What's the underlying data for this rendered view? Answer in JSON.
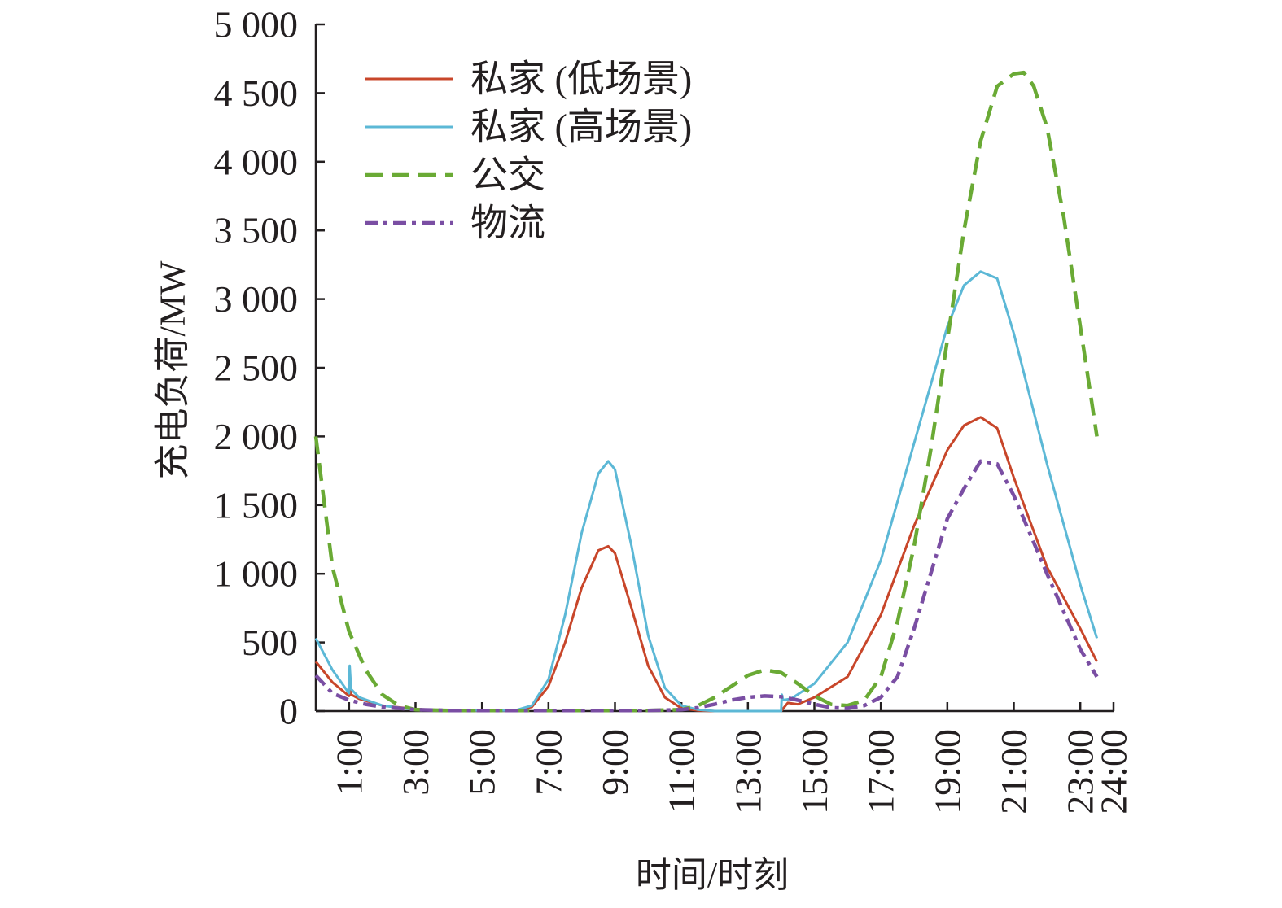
{
  "chart_data": {
    "type": "line",
    "title": "",
    "xlabel": "时间/时刻",
    "ylabel": "充电负荷/MW",
    "xlim": [
      0,
      24
    ],
    "ylim": [
      0,
      5000
    ],
    "yticks": [
      0,
      500,
      1000,
      1500,
      2000,
      2500,
      3000,
      3500,
      4000,
      4500,
      5000
    ],
    "ytick_labels": [
      "0",
      "500",
      "1 000",
      "1 500",
      "2 000",
      "2 500",
      "3 000",
      "3 500",
      "4 000",
      "4 500",
      "5 000"
    ],
    "xticks": [
      1,
      3,
      5,
      7,
      9,
      11,
      13,
      15,
      17,
      19,
      21,
      23,
      24
    ],
    "xtick_labels": [
      "1:00",
      "3:00",
      "5:00",
      "7:00",
      "9:00",
      "11:00",
      "13:00",
      "15:00",
      "17:00",
      "19:00",
      "21:00",
      "23:00",
      "24:00"
    ],
    "grid": false,
    "legend_position": "top-left",
    "series": [
      {
        "name": "私家 (低场景)",
        "color": "#c8462a",
        "style": "solid",
        "x": [
          0,
          0.5,
          1,
          1.02,
          1.06,
          1.3,
          2,
          3,
          4,
          5,
          6,
          6.5,
          7,
          7.5,
          8,
          8.5,
          8.8,
          9,
          9.5,
          10,
          10.5,
          11,
          11.5,
          12,
          13,
          14,
          14.2,
          14.5,
          15,
          16,
          17,
          18,
          19,
          19.5,
          20,
          20.5,
          21,
          22,
          23,
          23.5
        ],
        "y": [
          360,
          210,
          110,
          180,
          120,
          90,
          40,
          15,
          5,
          5,
          5,
          30,
          180,
          500,
          900,
          1170,
          1200,
          1150,
          750,
          330,
          100,
          20,
          5,
          0,
          0,
          0,
          60,
          50,
          100,
          250,
          700,
          1350,
          1900,
          2080,
          2140,
          2060,
          1700,
          1050,
          600,
          360
        ]
      },
      {
        "name": "私家 (高场景)",
        "color": "#5cb8d6",
        "style": "solid",
        "x": [
          0,
          0.5,
          1,
          1.02,
          1.06,
          1.3,
          2,
          3,
          4,
          5,
          6,
          6.5,
          7,
          7.5,
          8,
          8.5,
          8.8,
          9,
          9.5,
          10,
          10.5,
          11,
          11.5,
          12,
          13,
          14,
          14.02,
          14.06,
          14.3,
          15,
          16,
          17,
          18,
          19,
          19.5,
          20,
          20.5,
          21,
          22,
          23,
          23.5
        ],
        "y": [
          530,
          300,
          130,
          330,
          160,
          100,
          40,
          10,
          5,
          5,
          5,
          40,
          230,
          700,
          1300,
          1730,
          1820,
          1760,
          1200,
          550,
          170,
          40,
          10,
          0,
          0,
          0,
          120,
          80,
          90,
          200,
          500,
          1100,
          1950,
          2800,
          3100,
          3200,
          3150,
          2750,
          1800,
          920,
          530
        ]
      },
      {
        "name": "公交",
        "color": "#6aaa35",
        "style": "dashed",
        "x": [
          0,
          0.5,
          1,
          1.5,
          2,
          2.5,
          3,
          4,
          5,
          6,
          7,
          8,
          9,
          10,
          11,
          11.5,
          12,
          12.5,
          13,
          13.5,
          14,
          14.5,
          15,
          15.5,
          16,
          16.5,
          17,
          17.5,
          18,
          18.5,
          19,
          19.5,
          20,
          20.5,
          21,
          21.3,
          21.6,
          22,
          22.5,
          23,
          23.5
        ],
        "y": [
          2000,
          1050,
          580,
          300,
          120,
          40,
          10,
          5,
          5,
          5,
          5,
          5,
          5,
          5,
          10,
          40,
          100,
          180,
          260,
          300,
          280,
          200,
          110,
          50,
          40,
          80,
          250,
          650,
          1200,
          1900,
          2700,
          3500,
          4150,
          4550,
          4640,
          4650,
          4550,
          4250,
          3600,
          2800,
          2000
        ]
      },
      {
        "name": "物流",
        "color": "#7a4ea3",
        "style": "dashdot",
        "x": [
          0,
          0.5,
          1,
          1.5,
          2,
          3,
          4,
          5,
          6,
          7,
          8,
          9,
          10,
          11,
          11.5,
          12,
          12.5,
          13,
          13.5,
          14,
          14.5,
          15,
          15.5,
          16,
          16.5,
          17,
          17.5,
          18,
          18.5,
          19,
          19.5,
          20,
          20.5,
          21,
          22,
          23,
          23.5
        ],
        "y": [
          260,
          130,
          80,
          50,
          30,
          10,
          5,
          5,
          5,
          5,
          5,
          5,
          5,
          10,
          25,
          50,
          80,
          100,
          110,
          105,
          80,
          50,
          25,
          20,
          40,
          100,
          250,
          600,
          1000,
          1400,
          1620,
          1820,
          1800,
          1570,
          1000,
          450,
          250
        ]
      }
    ]
  }
}
